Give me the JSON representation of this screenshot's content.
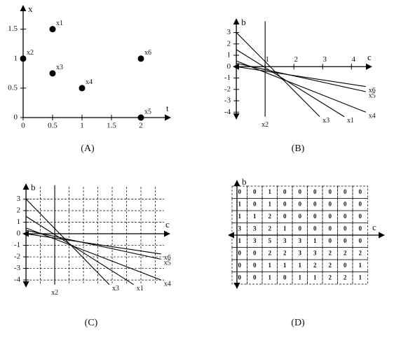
{
  "chart_data": [
    {
      "type": "scatter",
      "caption": "(A)",
      "xlabel": "t",
      "ylabel": "x",
      "x": [
        0.5,
        0,
        0.5,
        1,
        2,
        2
      ],
      "values": [
        1.5,
        1,
        0.75,
        0.5,
        0,
        1
      ],
      "point_labels": [
        "x1",
        "x2",
        "x3",
        "x4",
        "x5",
        "x6"
      ],
      "xlim": [
        0,
        2.5
      ],
      "ylim": [
        0,
        1.9
      ],
      "xticks": [
        0,
        0.5,
        1,
        1.5,
        2
      ],
      "yticks": [
        0,
        0.5,
        1,
        1.5
      ],
      "color": "#000000"
    },
    {
      "type": "line",
      "caption": "(B)",
      "xlabel": "c",
      "ylabel": "b",
      "series": [
        {
          "name": "x1",
          "x": [
            0,
            3.75
          ],
          "values": [
            1.5,
            -4.4
          ]
        },
        {
          "name": "x2",
          "x": [
            1,
            1
          ],
          "values": [
            4,
            -4.4
          ]
        },
        {
          "name": "x3",
          "x": [
            0,
            2.9
          ],
          "values": [
            3,
            -4.4
          ]
        },
        {
          "name": "x4",
          "x": [
            0,
            4.5
          ],
          "values": [
            0.5,
            -4
          ]
        },
        {
          "name": "x5",
          "x": [
            0,
            4.5
          ],
          "values": [
            0.3,
            -2.2
          ]
        },
        {
          "name": "x6",
          "x": [
            0,
            4.5
          ],
          "values": [
            0,
            -1.75
          ]
        }
      ],
      "xlim": [
        -0.1,
        4.7
      ],
      "ylim": [
        -4.6,
        4.2
      ],
      "xticks": [
        1,
        2,
        3,
        4
      ],
      "yticks": [
        -4,
        -3,
        -2,
        -1,
        0,
        1,
        2,
        3
      ],
      "color": "#000000",
      "grid": false
    },
    {
      "type": "line",
      "caption": "(C)",
      "xlabel": "c",
      "ylabel": "b",
      "series": [
        {
          "name": "x1",
          "x": [
            0,
            3.75
          ],
          "values": [
            1.5,
            -4.4
          ]
        },
        {
          "name": "x2",
          "x": [
            1,
            1
          ],
          "values": [
            4.2,
            -4.4
          ]
        },
        {
          "name": "x3",
          "x": [
            0,
            2.9
          ],
          "values": [
            3,
            -4.4
          ]
        },
        {
          "name": "x4",
          "x": [
            0,
            4.7
          ],
          "values": [
            0.5,
            -4
          ]
        },
        {
          "name": "x5",
          "x": [
            0,
            4.7
          ],
          "values": [
            0.3,
            -2.2
          ]
        },
        {
          "name": "x6",
          "x": [
            0,
            4.7
          ],
          "values": [
            0,
            -1.75
          ]
        }
      ],
      "xlim": [
        -0.1,
        5
      ],
      "ylim": [
        -4.6,
        4.3
      ],
      "yticks": [
        -4,
        -3,
        -2,
        -1,
        0,
        1,
        2,
        3
      ],
      "xgrid": [
        0,
        0.5,
        1,
        1.5,
        2,
        2.5,
        3,
        3.5,
        4,
        4.5
      ],
      "color": "#000000",
      "grid": true
    }
  ],
  "accumulator": {
    "caption": "(D)",
    "xlabel": "c",
    "ylabel": "b",
    "rows": [
      [
        0,
        0,
        1,
        0,
        0,
        0,
        0,
        0,
        0
      ],
      [
        1,
        0,
        1,
        0,
        0,
        0,
        0,
        0,
        0
      ],
      [
        1,
        1,
        2,
        0,
        0,
        0,
        0,
        0,
        0
      ],
      [
        3,
        3,
        2,
        1,
        0,
        0,
        0,
        0,
        0
      ],
      [
        1,
        3,
        5,
        3,
        3,
        1,
        0,
        0,
        0
      ],
      [
        0,
        0,
        2,
        2,
        3,
        3,
        2,
        2,
        2
      ],
      [
        0,
        0,
        1,
        1,
        1,
        2,
        2,
        0,
        1
      ],
      [
        0,
        0,
        1,
        0,
        1,
        1,
        2,
        2,
        1
      ]
    ]
  }
}
